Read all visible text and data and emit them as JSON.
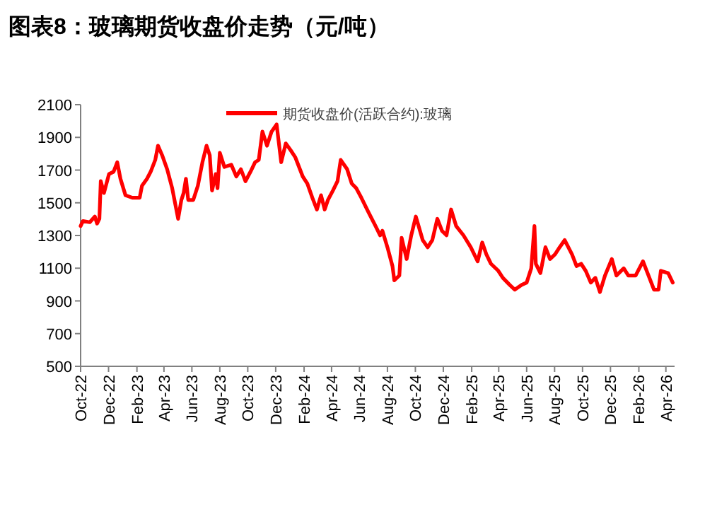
{
  "chart_data": {
    "type": "line",
    "title": "图表8：玻璃期货收盘价走势（元/吨）",
    "legend": "top",
    "grid": false,
    "marker": "none",
    "line_style": "solid",
    "xlim": [
      "2022-10-01",
      "2026-04-20"
    ],
    "xticks": [
      {
        "value": "2022-10-01",
        "label": "Oct-22"
      },
      {
        "value": "2022-12-01",
        "label": "Dec-22"
      },
      {
        "value": "2023-02-01",
        "label": "Feb-23"
      },
      {
        "value": "2023-04-01",
        "label": "Apr-23"
      },
      {
        "value": "2023-06-01",
        "label": "Jun-23"
      },
      {
        "value": "2023-08-01",
        "label": "Aug-23"
      },
      {
        "value": "2023-10-01",
        "label": "Oct-23"
      },
      {
        "value": "2023-12-01",
        "label": "Dec-23"
      },
      {
        "value": "2024-02-01",
        "label": "Feb-24"
      },
      {
        "value": "2024-04-01",
        "label": "Apr-24"
      },
      {
        "value": "2024-06-01",
        "label": "Jun-24"
      },
      {
        "value": "2024-08-01",
        "label": "Aug-24"
      },
      {
        "value": "2024-10-01",
        "label": "Oct-24"
      },
      {
        "value": "2024-12-01",
        "label": "Dec-24"
      },
      {
        "value": "2025-02-01",
        "label": "Feb-25"
      },
      {
        "value": "2025-04-01",
        "label": "Apr-25"
      },
      {
        "value": "2025-06-01",
        "label": "Jun-25"
      },
      {
        "value": "2025-08-01",
        "label": "Aug-25"
      },
      {
        "value": "2025-10-01",
        "label": "Oct-25"
      },
      {
        "value": "2025-12-01",
        "label": "Dec-25"
      },
      {
        "value": "2026-02-01",
        "label": "Feb-26"
      },
      {
        "value": "2026-04-01",
        "label": "Apr-26"
      }
    ],
    "ylim": [
      500,
      2100
    ],
    "yticks": [
      500,
      700,
      900,
      1100,
      1300,
      1500,
      1700,
      1900,
      2100
    ],
    "series": [
      {
        "name": "期货收盘价(活跃合约):玻璃",
        "color": "#ff0000",
        "x": [
          "2022-10-01",
          "2022-10-06",
          "2022-10-21",
          "2022-11-01",
          "2022-11-06",
          "2022-11-11",
          "2022-11-14",
          "2022-11-21",
          "2022-12-02",
          "2022-12-12",
          "2022-12-20",
          "2022-12-27",
          "2023-01-07",
          "2023-01-22",
          "2023-02-07",
          "2023-02-12",
          "2023-02-23",
          "2023-03-03",
          "2023-03-13",
          "2023-03-19",
          "2023-03-28",
          "2023-04-08",
          "2023-04-19",
          "2023-04-26",
          "2023-05-02",
          "2023-05-09",
          "2023-05-14",
          "2023-05-19",
          "2023-05-24",
          "2023-06-04",
          "2023-06-14",
          "2023-06-24",
          "2023-07-03",
          "2023-07-10",
          "2023-07-15",
          "2023-07-23",
          "2023-07-27",
          "2023-08-01",
          "2023-08-11",
          "2023-08-26",
          "2023-09-06",
          "2023-09-16",
          "2023-09-26",
          "2023-10-07",
          "2023-10-17",
          "2023-10-25",
          "2023-11-02",
          "2023-11-12",
          "2023-11-22",
          "2023-12-03",
          "2023-12-13",
          "2023-12-23",
          "2024-01-03",
          "2024-01-13",
          "2024-01-29",
          "2024-02-08",
          "2024-02-19",
          "2024-02-29",
          "2024-03-09",
          "2024-03-17",
          "2024-03-24",
          "2024-04-04",
          "2024-04-14",
          "2024-04-21",
          "2024-05-05",
          "2024-05-15",
          "2024-05-25",
          "2024-06-05",
          "2024-06-20",
          "2024-07-06",
          "2024-07-16",
          "2024-07-21",
          "2024-08-01",
          "2024-08-12",
          "2024-08-16",
          "2024-08-27",
          "2024-09-01",
          "2024-09-12",
          "2024-09-22",
          "2024-10-02",
          "2024-10-17",
          "2024-10-28",
          "2024-11-07",
          "2024-11-18",
          "2024-11-28",
          "2024-12-08",
          "2024-12-18",
          "2024-12-29",
          "2025-01-14",
          "2025-01-30",
          "2025-02-14",
          "2025-02-24",
          "2025-03-05",
          "2025-03-15",
          "2025-03-31",
          "2025-04-10",
          "2025-04-25",
          "2025-05-06",
          "2025-05-21",
          "2025-06-01",
          "2025-06-11",
          "2025-06-18",
          "2025-06-21",
          "2025-07-01",
          "2025-07-12",
          "2025-07-22",
          "2025-08-02",
          "2025-08-12",
          "2025-08-23",
          "2025-09-08",
          "2025-09-18",
          "2025-09-28",
          "2025-10-08",
          "2025-10-19",
          "2025-10-29",
          "2025-11-08",
          "2025-11-19",
          "2025-12-04",
          "2025-12-14",
          "2025-12-30",
          "2026-01-09",
          "2026-01-25",
          "2026-02-10",
          "2026-02-20",
          "2026-03-06",
          "2026-03-16",
          "2026-03-21",
          "2026-04-06",
          "2026-04-16"
        ],
        "values": [
          1358,
          1388,
          1381,
          1416,
          1373,
          1402,
          1632,
          1560,
          1676,
          1690,
          1748,
          1647,
          1546,
          1531,
          1531,
          1604,
          1647,
          1690,
          1762,
          1849,
          1791,
          1705,
          1589,
          1488,
          1402,
          1517,
          1560,
          1647,
          1517,
          1517,
          1604,
          1748,
          1849,
          1791,
          1575,
          1676,
          1589,
          1806,
          1719,
          1733,
          1661,
          1705,
          1632,
          1690,
          1748,
          1762,
          1935,
          1849,
          1935,
          1979,
          1748,
          1863,
          1820,
          1777,
          1661,
          1618,
          1531,
          1459,
          1546,
          1459,
          1517,
          1575,
          1632,
          1762,
          1705,
          1618,
          1589,
          1531,
          1445,
          1358,
          1301,
          1329,
          1228,
          1113,
          1026,
          1055,
          1286,
          1156,
          1301,
          1416,
          1272,
          1228,
          1272,
          1402,
          1329,
          1301,
          1459,
          1358,
          1301,
          1228,
          1142,
          1257,
          1185,
          1127,
          1084,
          1041,
          998,
          969,
          998,
          1012,
          1099,
          1358,
          1127,
          1070,
          1228,
          1156,
          1185,
          1228,
          1272,
          1185,
          1113,
          1127,
          1084,
          1012,
          1041,
          954,
          1055,
          1156,
          1055,
          1099,
          1055,
          1055,
          1142,
          1070,
          969,
          969,
          1084,
          1070,
          1012
        ]
      }
    ]
  }
}
